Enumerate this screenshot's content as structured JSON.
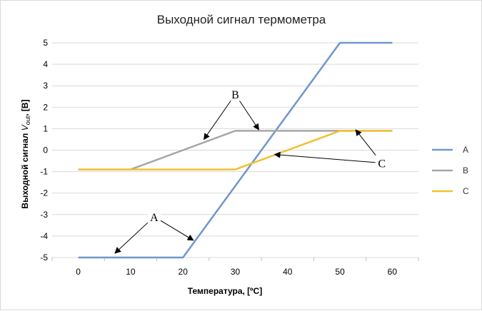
{
  "chart_data": {
    "type": "line",
    "title": "Выходной сигнал термометра",
    "xlabel": "Температура,  [ºC]",
    "ylabel": {
      "main": "Выходной сигнал ",
      "var": "V",
      "sub": "out",
      "unit": ", [В]"
    },
    "xlim": [
      -5,
      65
    ],
    "ylim": [
      -5,
      5
    ],
    "x_ticks": [
      0,
      10,
      20,
      30,
      40,
      50,
      60
    ],
    "y_ticks": [
      -5,
      -4,
      -3,
      -2,
      -1,
      0,
      1,
      2,
      3,
      4,
      5
    ],
    "grid": "horizontal",
    "legend_position": "right",
    "series": [
      {
        "name": "A",
        "color": "#6f97cc",
        "x": [
          0,
          20,
          50,
          60
        ],
        "y": [
          -5,
          -5,
          5,
          5
        ]
      },
      {
        "name": "B",
        "color": "#a6a6a6",
        "x": [
          0,
          10,
          30,
          60
        ],
        "y": [
          -0.9,
          -0.9,
          0.9,
          0.9
        ]
      },
      {
        "name": "C",
        "color": "#f2c12e",
        "x": [
          0,
          30,
          50,
          60
        ],
        "y": [
          -0.9,
          -0.9,
          0.9,
          0.9
        ]
      }
    ],
    "annotations": [
      {
        "label": "A",
        "label_at": [
          14.5,
          -3.1
        ],
        "arrows_to": [
          [
            7,
            -4.8
          ],
          [
            22,
            -4.2
          ]
        ]
      },
      {
        "label": "B",
        "label_at": [
          30,
          2.6
        ],
        "arrows_to": [
          [
            24,
            0.5
          ],
          [
            34.5,
            0.95
          ]
        ]
      },
      {
        "label": "C",
        "label_at": [
          58,
          -0.6
        ],
        "arrows_to": [
          [
            37.5,
            -0.2
          ],
          [
            53,
            0.95
          ]
        ]
      }
    ]
  }
}
